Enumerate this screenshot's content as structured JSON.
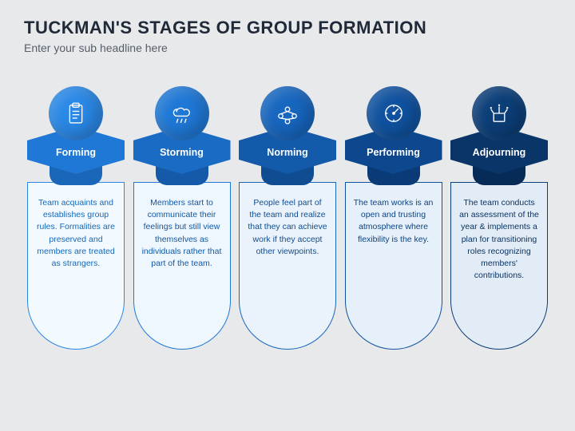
{
  "title": "TUCKMAN'S STAGES OF GROUP FORMATION",
  "subtitle": "Enter your sub headline here",
  "background": "#e8e9eb",
  "stages": [
    {
      "label": "Forming",
      "desc": "Team acquaints and establishes group rules. Formalities are preserved and members are treated as strangers.",
      "circle_color": "#2a88e6",
      "hex_color": "#1f78d6",
      "tab_color": "#1a66b8",
      "pill_bg": "#f2f9ff",
      "pill_border": "#2a88e6",
      "text_color": "#1568b8",
      "icon": "clipboard"
    },
    {
      "label": "Storming",
      "desc": "Members start to communicate their feelings but still view themselves as individuals rather that part of the team.",
      "circle_color": "#1f78d6",
      "hex_color": "#1a6bc4",
      "tab_color": "#145aa8",
      "pill_bg": "#eef6fe",
      "pill_border": "#1f78d6",
      "text_color": "#125aa5",
      "icon": "storm"
    },
    {
      "label": "Norming",
      "desc": "People feel part of the team and realize that they can achieve work if they accept other viewpoints.",
      "circle_color": "#1766bf",
      "hex_color": "#135aab",
      "tab_color": "#0f4c92",
      "pill_bg": "#eaf3fc",
      "pill_border": "#1766bf",
      "text_color": "#0f4d91",
      "icon": "team"
    },
    {
      "label": "Performing",
      "desc": "The team works is an open and trusting atmosphere where flexibility is the key.",
      "circle_color": "#10529f",
      "hex_color": "#0d478d",
      "tab_color": "#0a3b77",
      "pill_bg": "#e6f0fa",
      "pill_border": "#10529f",
      "text_color": "#0c4280",
      "icon": "gauge"
    },
    {
      "label": "Adjourning",
      "desc": "The team conducts an assessment of the year & implements a plan for transitioning roles recognizing members' contributions.",
      "circle_color": "#0c3e78",
      "hex_color": "#0a3569",
      "tab_color": "#072b57",
      "pill_bg": "#e2ecf6",
      "pill_border": "#0c3e78",
      "text_color": "#0a3363",
      "icon": "celebrate"
    }
  ]
}
